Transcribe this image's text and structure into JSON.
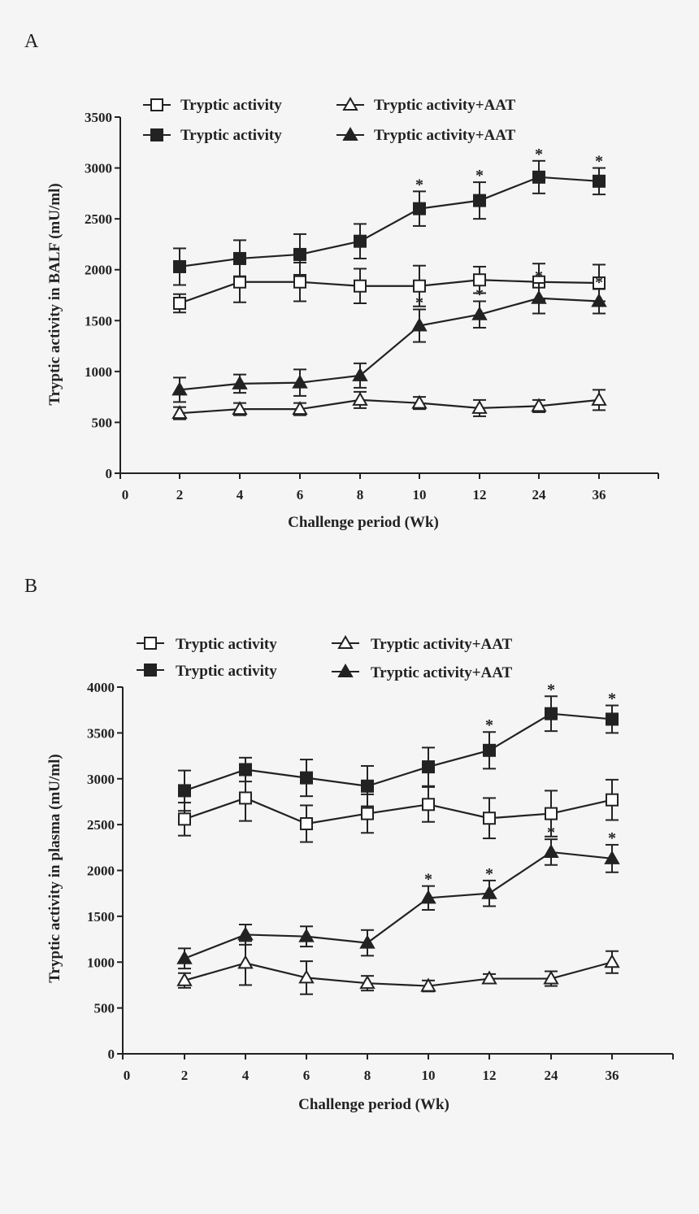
{
  "chart_data": [
    {
      "type": "line",
      "panel": "A",
      "xlabel": "Challenge period (Wk)",
      "ylabel": "Tryptic activity in BALF (mU/ml)",
      "categories": [
        "2",
        "4",
        "6",
        "8",
        "10",
        "12",
        "24",
        "36"
      ],
      "x_zero_label": "0",
      "ylim": [
        0,
        3500
      ],
      "yticks": [
        0,
        500,
        1000,
        1500,
        2000,
        2500,
        3000,
        3500
      ],
      "legend_position": "top",
      "series": [
        {
          "name": "Tryptic activity",
          "marker": "open-square",
          "values": [
            1670,
            1880,
            1880,
            1840,
            1840,
            1900,
            1880,
            1870
          ],
          "errors": [
            90,
            200,
            190,
            170,
            200,
            130,
            180,
            180
          ],
          "significant": [
            false,
            false,
            false,
            false,
            false,
            false,
            false,
            false
          ]
        },
        {
          "name": "Tryptic activity",
          "marker": "filled-square",
          "values": [
            2030,
            2110,
            2150,
            2280,
            2600,
            2680,
            2910,
            2870
          ],
          "errors": [
            180,
            180,
            200,
            170,
            170,
            180,
            160,
            130
          ],
          "significant": [
            false,
            false,
            false,
            false,
            true,
            true,
            true,
            true
          ]
        },
        {
          "name": "Tryptic activity+AAT",
          "marker": "open-triangle",
          "values": [
            590,
            630,
            630,
            720,
            690,
            640,
            660,
            720
          ],
          "errors": [
            60,
            60,
            60,
            80,
            60,
            80,
            60,
            100
          ],
          "significant": [
            false,
            false,
            false,
            false,
            false,
            false,
            false,
            false
          ]
        },
        {
          "name": "Tryptic activity+AAT",
          "marker": "filled-triangle",
          "values": [
            820,
            880,
            890,
            960,
            1450,
            1560,
            1720,
            1690
          ],
          "errors": [
            120,
            90,
            130,
            120,
            160,
            130,
            150,
            120
          ],
          "significant": [
            false,
            false,
            false,
            false,
            true,
            true,
            true,
            true
          ]
        }
      ]
    },
    {
      "type": "line",
      "panel": "B",
      "xlabel": "Challenge period (Wk)",
      "ylabel": "Tryptic activity in plasma (mU/ml)",
      "categories": [
        "2",
        "4",
        "6",
        "8",
        "10",
        "12",
        "24",
        "36"
      ],
      "x_zero_label": "0",
      "ylim": [
        0,
        4000
      ],
      "yticks": [
        0,
        500,
        1000,
        1500,
        2000,
        2500,
        3000,
        3500,
        4000
      ],
      "legend_position": "top",
      "series": [
        {
          "name": "Tryptic activity",
          "marker": "open-square",
          "values": [
            2560,
            2790,
            2510,
            2620,
            2720,
            2570,
            2620,
            2770
          ],
          "errors": [
            180,
            250,
            200,
            210,
            190,
            220,
            250,
            220
          ],
          "significant": [
            false,
            false,
            false,
            false,
            false,
            false,
            false,
            false
          ]
        },
        {
          "name": "Tryptic activity",
          "marker": "filled-square",
          "values": [
            2870,
            3100,
            3010,
            2920,
            3130,
            3310,
            3710,
            3650
          ],
          "errors": [
            220,
            130,
            200,
            220,
            210,
            200,
            190,
            150
          ],
          "significant": [
            false,
            false,
            false,
            false,
            false,
            true,
            true,
            true
          ]
        },
        {
          "name": "Tryptic activity+AAT",
          "marker": "open-triangle",
          "values": [
            800,
            990,
            830,
            770,
            740,
            820,
            820,
            1000
          ],
          "errors": [
            80,
            240,
            180,
            80,
            60,
            50,
            80,
            120
          ],
          "significant": [
            false,
            false,
            false,
            false,
            false,
            false,
            false,
            false
          ]
        },
        {
          "name": "Tryptic activity+AAT",
          "marker": "filled-triangle",
          "values": [
            1040,
            1300,
            1280,
            1210,
            1700,
            1750,
            2200,
            2130
          ],
          "errors": [
            110,
            110,
            110,
            140,
            130,
            140,
            140,
            150
          ],
          "significant": [
            false,
            false,
            false,
            false,
            true,
            true,
            true,
            true
          ]
        }
      ]
    }
  ]
}
